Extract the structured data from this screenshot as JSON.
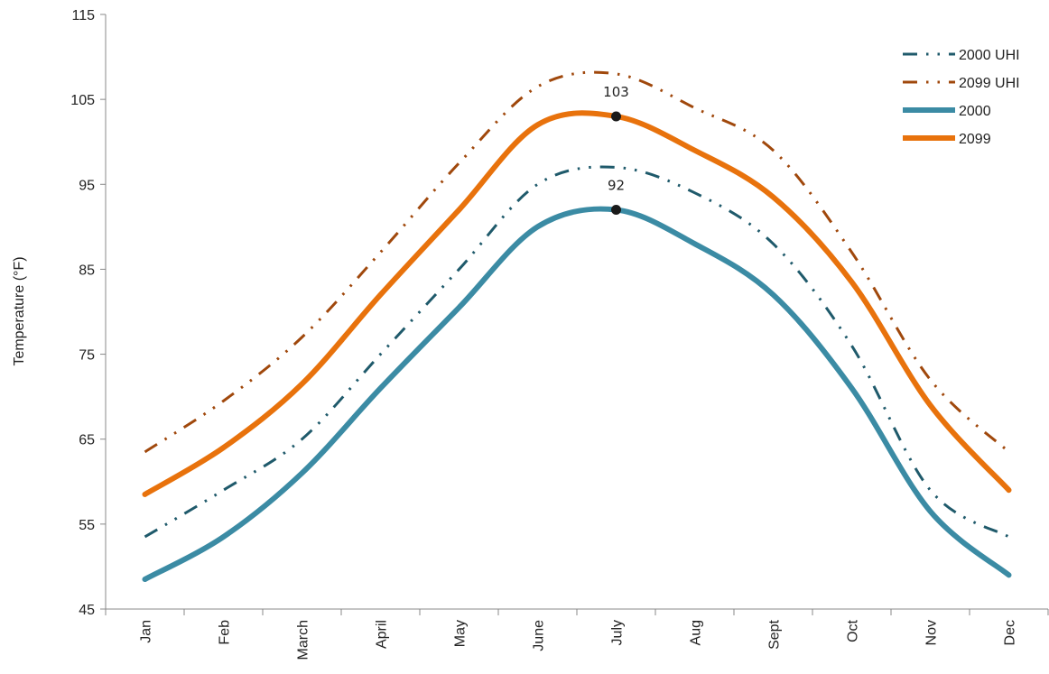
{
  "chart_data": {
    "type": "line",
    "title": "",
    "xlabel": "",
    "ylabel": "Temperature (°F)",
    "ylim": [
      45,
      115
    ],
    "yticks": [
      45,
      55,
      65,
      75,
      85,
      95,
      105,
      115
    ],
    "categories": [
      "Jan",
      "Feb",
      "March",
      "April",
      "May",
      "June",
      "July",
      "Aug",
      "Sept",
      "Oct",
      "Nov",
      "Dec"
    ],
    "grid": false,
    "legend": "top-right",
    "series": [
      {
        "name": "2000 UHI",
        "style": "dash-dot-dot",
        "color": "#1f5a6b",
        "values": [
          53.5,
          59,
          65,
          75,
          85,
          95,
          97,
          94,
          88,
          76,
          59,
          53.5
        ]
      },
      {
        "name": "2099 UHI",
        "style": "dash-dot-dot",
        "color": "#a0480c",
        "values": [
          63.5,
          69.5,
          77,
          87,
          97.5,
          106.5,
          108,
          104,
          99,
          87,
          72,
          63.5
        ]
      },
      {
        "name": "2000",
        "style": "solid",
        "color": "#3b8ba4",
        "values": [
          48.5,
          53.5,
          61,
          71,
          80.5,
          90,
          92,
          88,
          82,
          71,
          56.5,
          49
        ]
      },
      {
        "name": "2099",
        "style": "solid",
        "color": "#e8720c",
        "values": [
          58.5,
          64,
          71.5,
          82,
          92,
          102,
          103,
          99,
          93.5,
          83.5,
          69,
          59
        ]
      }
    ],
    "annotations": [
      {
        "series": "2099",
        "category": "July",
        "value": 103,
        "label": "103"
      },
      {
        "series": "2000",
        "category": "July",
        "value": 92,
        "label": "92"
      }
    ]
  }
}
